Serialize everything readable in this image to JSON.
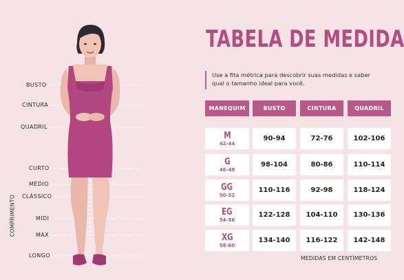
{
  "title": "TABELA DE MEDIDAS",
  "intro": "Use a fita métrica para descobrir suas medidas e saber qual o tamanho ideal para você.",
  "measure_labels": {
    "busto": "BUSTO",
    "cintura": "CINTURA",
    "quadril": "QUADRIL",
    "curto": "CURTO",
    "medio": "MÉDIO",
    "classico": "CLÁSSICO",
    "midi": "MIDI",
    "max": "MAX",
    "longo": "LONGO",
    "comprimento": "COMPRIMENTO"
  },
  "table": {
    "headers": [
      "MANEQUIM",
      "BUSTO",
      "CINTURA",
      "QUADRIL"
    ],
    "rows": [
      {
        "size": "M",
        "range": "42-44",
        "busto": "90-94",
        "cintura": "72-76",
        "quadril": "102-106"
      },
      {
        "size": "G",
        "range": "46-48",
        "busto": "98-104",
        "cintura": "80-86",
        "quadril": "110-114"
      },
      {
        "size": "GG",
        "range": "50-52",
        "busto": "110-116",
        "cintura": "92-98",
        "quadril": "118-124"
      },
      {
        "size": "EG",
        "range": "54-56",
        "busto": "122-128",
        "cintura": "104-110",
        "quadril": "130-136"
      },
      {
        "size": "XG",
        "range": "58-60",
        "busto": "134-140",
        "cintura": "116-122",
        "quadril": "142-148"
      }
    ]
  },
  "footnote": "MEDIDAS EM CENTÍMETROS",
  "colors": {
    "accent": "#b54c80",
    "header": "#b75a8a",
    "dress": "#b24680",
    "background": "#f5e3e5"
  }
}
